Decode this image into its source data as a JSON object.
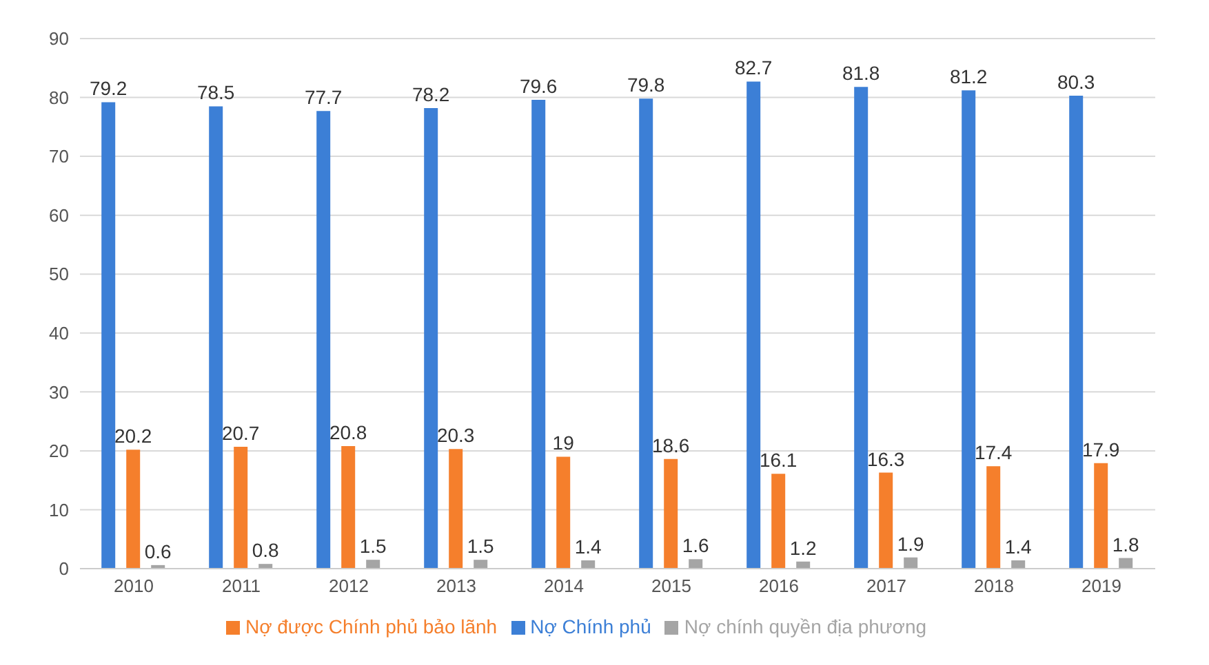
{
  "chart_data": {
    "type": "bar",
    "categories": [
      "2010",
      "2011",
      "2012",
      "2013",
      "2014",
      "2015",
      "2016",
      "2017",
      "2018",
      "2019"
    ],
    "series": [
      {
        "name": "Nợ Chính phủ",
        "color": "#3c7fd6",
        "values": [
          79.2,
          78.5,
          77.7,
          78.2,
          79.6,
          79.8,
          82.7,
          81.8,
          81.2,
          80.3
        ]
      },
      {
        "name": "Nợ  được Chính phủ bảo lãnh",
        "color": "#f57f2c",
        "values": [
          20.2,
          20.7,
          20.8,
          20.3,
          19,
          18.6,
          16.1,
          16.3,
          17.4,
          17.9
        ]
      },
      {
        "name": "Nợ chính quyền địa phương",
        "color": "#a5a5a5",
        "values": [
          0.6,
          0.8,
          1.5,
          1.5,
          1.4,
          1.6,
          1.2,
          1.9,
          1.4,
          1.8
        ]
      }
    ],
    "ylim": [
      0,
      90
    ],
    "yticks": [
      0,
      10,
      20,
      30,
      40,
      50,
      60,
      70,
      80,
      90
    ],
    "grid": "y",
    "legend": "bottom",
    "data_labels": true
  }
}
